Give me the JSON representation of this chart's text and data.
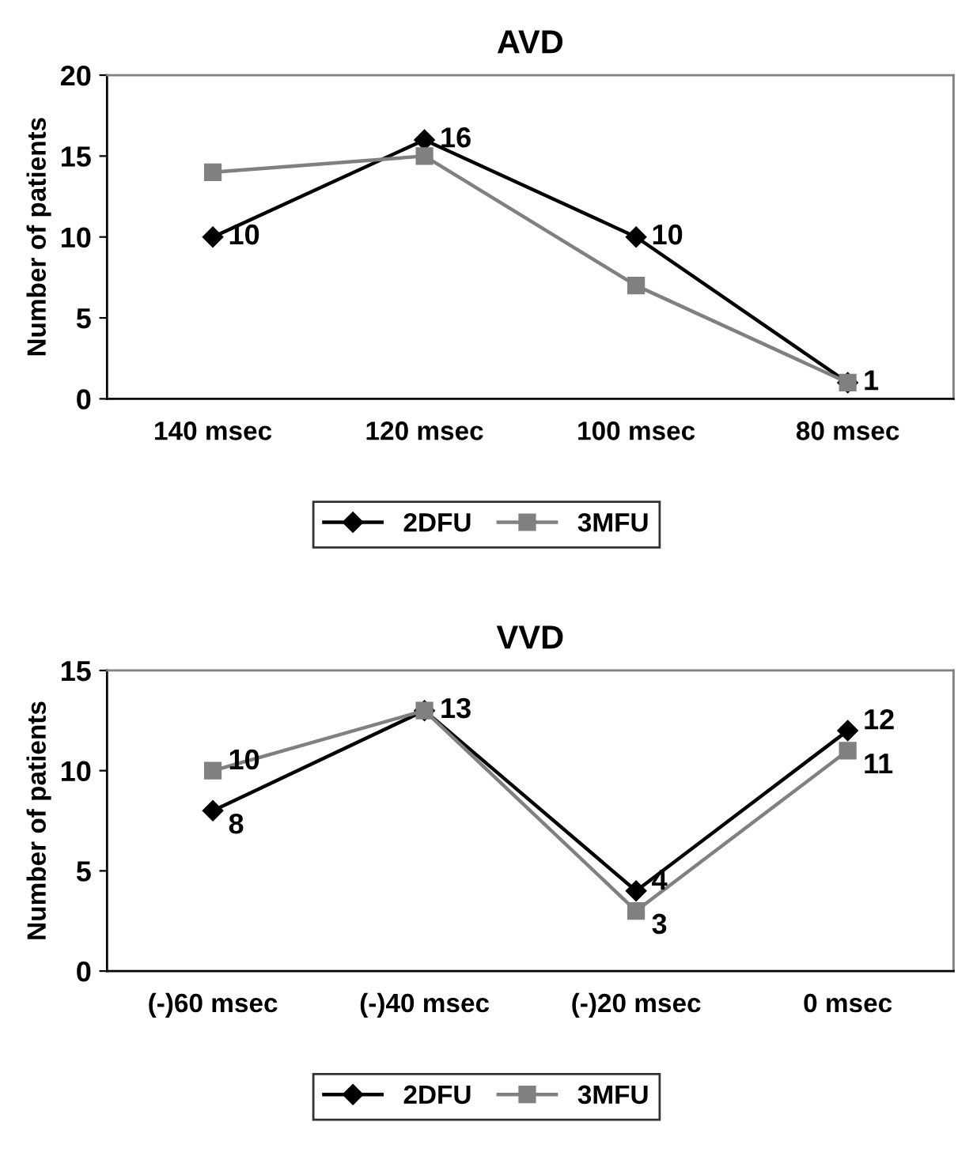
{
  "chart_data": [
    {
      "type": "line",
      "title": "AVD",
      "ylabel": "Number of patients",
      "categories": [
        "140 msec",
        "120 msec",
        "100 msec",
        "80 msec"
      ],
      "ylim": [
        0,
        20
      ],
      "yticks": [
        0,
        5,
        10,
        15,
        20
      ],
      "grid": false,
      "legend": "bottom",
      "line_style": "solid",
      "series": [
        {
          "name": "2DFU",
          "color": "#000000",
          "marker": "diamond",
          "values": [
            10,
            16,
            10,
            1
          ],
          "value_labels": [
            "10",
            "16",
            "10",
            "1"
          ]
        },
        {
          "name": "3MFU",
          "color": "#808080",
          "marker": "square",
          "values": [
            14,
            15,
            7,
            1
          ],
          "value_labels": [
            null,
            null,
            null,
            null
          ]
        }
      ]
    },
    {
      "type": "line",
      "title": "VVD",
      "ylabel": "Number of patients",
      "categories": [
        "(-)60 msec",
        "(-)40 msec",
        "(-)20 msec",
        "0 msec"
      ],
      "ylim": [
        0,
        15
      ],
      "yticks": [
        0,
        5,
        10,
        15
      ],
      "grid": false,
      "legend": "bottom",
      "line_style": "solid",
      "series": [
        {
          "name": "2DFU",
          "color": "#000000",
          "marker": "diamond",
          "values": [
            8,
            13,
            4,
            12
          ],
          "value_labels": [
            "8",
            "13",
            "4",
            "12"
          ]
        },
        {
          "name": "3MFU",
          "color": "#808080",
          "marker": "square",
          "values": [
            10,
            13,
            3,
            11
          ],
          "value_labels": [
            "10",
            null,
            "3",
            "11"
          ]
        }
      ]
    }
  ]
}
